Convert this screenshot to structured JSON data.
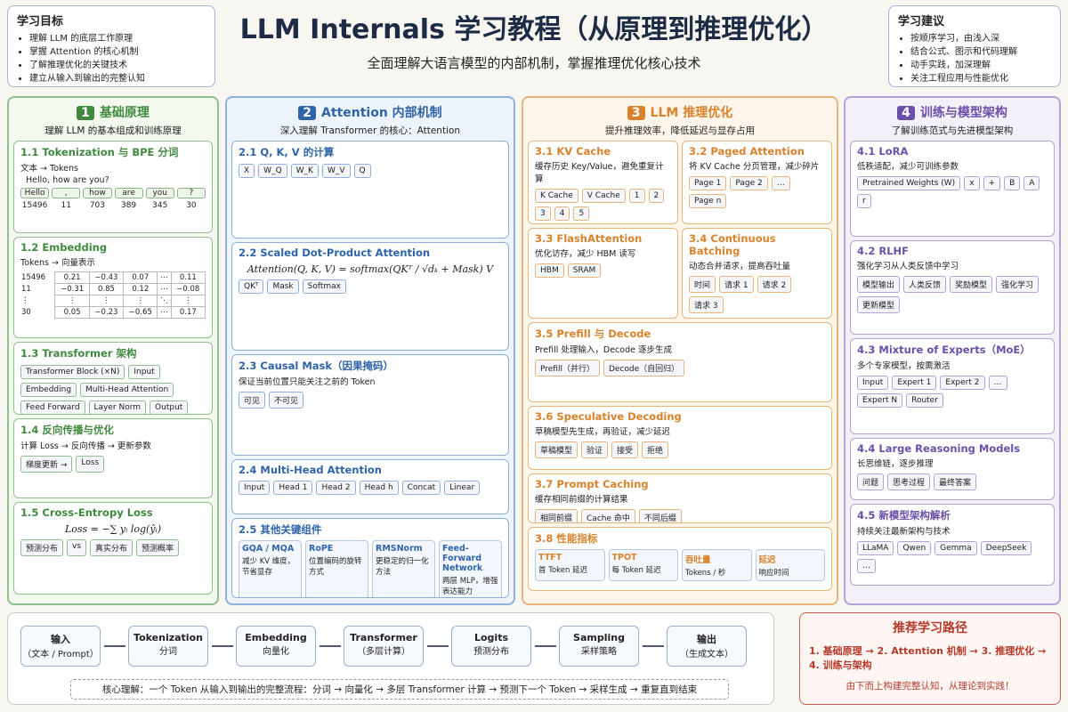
{
  "header": {
    "title": "LLM Internals 学习教程（从原理到推理优化）",
    "subtitle": "全面理解大语言模型的内部机制，掌握推理优化核心技术"
  },
  "goals": {
    "title": "学习目标",
    "items": [
      "理解 LLM 的底层工作原理",
      "掌握 Attention 的核心机制",
      "了解推理优化的关键技术",
      "建立从输入到输出的完整认知"
    ]
  },
  "tips": {
    "title": "学习建议",
    "items": [
      "按顺序学习，由浅入深",
      "结合公式、图示和代码理解",
      "动手实践，加深理解",
      "关注工程应用与性能优化"
    ]
  },
  "columns": [
    {
      "number": "1",
      "title": "基础原理",
      "subtitle": "理解 LLM 的基本组成和训练原理",
      "sections": [
        {
          "title": "1.1 Tokenization 与 BPE 分词",
          "desc": "文本 → Tokens",
          "sample": "Hello, how are you?",
          "tokens": [
            "Hello",
            ",",
            "how",
            "are",
            "you",
            "?"
          ],
          "ids": [
            "15496",
            "11",
            "703",
            "389",
            "345",
            "30"
          ]
        },
        {
          "title": "1.2 Embedding",
          "desc": "Tokens → 向量表示",
          "row_labels": [
            "15496",
            "11",
            "⋮",
            "30"
          ],
          "matrix": [
            [
              "0.21",
              "−0.43",
              "0.07",
              "⋯",
              "0.11"
            ],
            [
              "−0.31",
              "0.85",
              "0.12",
              "⋯",
              "−0.08"
            ],
            [
              "⋮",
              "⋮",
              "⋮",
              "⋱",
              "⋮"
            ],
            [
              "0.05",
              "−0.23",
              "−0.65",
              "⋯",
              "0.17"
            ]
          ]
        },
        {
          "title": "1.3 Transformer 架构",
          "labels": [
            "Transformer Block (×N)",
            "Input",
            "Embedding",
            "Multi-Head Attention",
            "Feed Forward",
            "Layer Norm",
            "Output"
          ]
        },
        {
          "title": "1.4 反向传播与优化",
          "desc": "计算 Loss → 反向传播 → 更新参数",
          "labels": [
            "梯度更新 →",
            "Loss"
          ]
        },
        {
          "title": "1.5 Cross-Entropy Loss",
          "labels": [
            "预测分布",
            "vs",
            "真实分布",
            "预测概率"
          ],
          "formula": "Loss = −∑ yᵢ log(ŷᵢ)"
        }
      ]
    },
    {
      "number": "2",
      "title": "Attention 内部机制",
      "subtitle": "深入理解 Transformer 的核心：Attention",
      "sections": [
        {
          "title": "2.1 Q, K, V 的计算",
          "labels": [
            "X",
            "W_Q",
            "W_K",
            "W_V",
            "Q"
          ]
        },
        {
          "title": "2.2 Scaled Dot-Product Attention",
          "formula": "Attention(Q, K, V) = softmax(QKᵀ / √dₖ + Mask) V",
          "labels": [
            "QKᵀ",
            "Mask",
            "Softmax"
          ]
        },
        {
          "title": "2.3 Causal Mask（因果掩码）",
          "desc": "保证当前位置只能关注之前的 Token",
          "labels": [
            "可见",
            "不可见"
          ]
        },
        {
          "title": "2.4 Multi-Head Attention",
          "labels": [
            "Input",
            "Head 1",
            "Head 2",
            "Head h",
            "Concat",
            "Linear"
          ]
        },
        {
          "title": "2.5 其他关键组件",
          "cards": [
            {
              "title": "GQA / MQA",
              "text": "减少 KV 维度，节省显存"
            },
            {
              "title": "RoPE",
              "text": "位置编码的旋转方式"
            },
            {
              "title": "RMSNorm",
              "text": "更稳定的归一化方法"
            },
            {
              "title": "Feed-Forward Network",
              "text": "两层 MLP，增强表达能力"
            }
          ]
        }
      ]
    },
    {
      "number": "3",
      "title": "LLM 推理优化",
      "subtitle": "提升推理效率，降低延迟与显存占用",
      "sections": [
        {
          "title": "3.1 KV Cache",
          "desc": "缓存历史 Key/Value，避免重复计算",
          "labels": [
            "K Cache",
            "V Cache",
            "1",
            "2",
            "3",
            "4",
            "5"
          ]
        },
        {
          "title": "3.2 Paged Attention",
          "desc": "将 KV Cache 分页管理，减少碎片",
          "labels": [
            "Page 1",
            "Page 2",
            "…",
            "Page n"
          ]
        },
        {
          "title": "3.3 FlashAttention",
          "desc": "优化访存，减少 HBM 读写",
          "labels": [
            "HBM",
            "SRAM"
          ]
        },
        {
          "title": "3.4 Continuous Batching",
          "desc": "动态合并请求，提高吞吐量",
          "labels": [
            "时间",
            "请求 1",
            "请求 2",
            "请求 3"
          ]
        },
        {
          "title": "3.5 Prefill 与 Decode",
          "desc": "Prefill 处理输入，Decode 逐步生成",
          "labels": [
            "Prefill（并行）",
            "Decode（自回归）"
          ]
        },
        {
          "title": "3.6 Speculative Decoding",
          "desc": "草稿模型先生成，再验证，减少延迟",
          "labels": [
            "草稿模型",
            "验证",
            "接受",
            "拒绝"
          ]
        },
        {
          "title": "3.7 Prompt Caching",
          "desc": "缓存相同前缀的计算结果",
          "labels": [
            "相同前缀",
            "Cache 命中",
            "不同后缀"
          ]
        },
        {
          "title": "3.8 性能指标",
          "cards": [
            {
              "title": "TTFT",
              "text": "首 Token 延迟"
            },
            {
              "title": "TPOT",
              "text": "每 Token 延迟"
            },
            {
              "title": "吞吐量",
              "text": "Tokens / 秒"
            },
            {
              "title": "延迟",
              "text": "响应时间"
            }
          ]
        }
      ]
    },
    {
      "number": "4",
      "title": "训练与模型架构",
      "subtitle": "了解训练范式与先进模型架构",
      "sections": [
        {
          "title": "4.1 LoRA",
          "desc": "低秩适配，减少可训练参数",
          "labels": [
            "Pretrained Weights (W)",
            "x",
            "+",
            "B",
            "A",
            "r"
          ]
        },
        {
          "title": "4.2 RLHF",
          "desc": "强化学习从人类反馈中学习",
          "labels": [
            "模型输出",
            "人类反馈",
            "奖励模型",
            "强化学习",
            "更新模型"
          ]
        },
        {
          "title": "4.3 Mixture of Experts（MoE）",
          "desc": "多个专家模型，按需激活",
          "labels": [
            "Input",
            "Expert 1",
            "Expert 2",
            "…",
            "Expert N",
            "Router"
          ]
        },
        {
          "title": "4.4 Large Reasoning Models",
          "desc": "长思维链，逐步推理",
          "labels": [
            "问题",
            "思考过程",
            "最终答案"
          ]
        },
        {
          "title": "4.5 新模型架构解析",
          "desc": "持续关注最新架构与技术",
          "labels": [
            "LLaMA",
            "Qwen",
            "Gemma",
            "DeepSeek",
            "…"
          ]
        }
      ]
    }
  ],
  "pipeline": {
    "steps": [
      {
        "title": "输入",
        "sub": "（文本 / Prompt）"
      },
      {
        "title": "Tokenization",
        "sub": "分词"
      },
      {
        "title": "Embedding",
        "sub": "向量化"
      },
      {
        "title": "Transformer",
        "sub": "（多层计算）"
      },
      {
        "title": "Logits",
        "sub": "预测分布"
      },
      {
        "title": "Sampling",
        "sub": "采样策略"
      },
      {
        "title": "输出",
        "sub": "（生成文本）"
      }
    ],
    "note": "核心理解：一个 Token 从输入到输出的完整流程：分词 → 向量化 → 多层 Transformer 计算 → 预测下一个 Token → 采样生成 → 重复直到结束"
  },
  "path": {
    "title": "推荐学习路径",
    "text": "1. 基础原理 → 2. Attention 机制 → 3. 推理优化 → 4. 训练与架构",
    "footer": "由下而上构建完整认知，从理论到实践！"
  }
}
